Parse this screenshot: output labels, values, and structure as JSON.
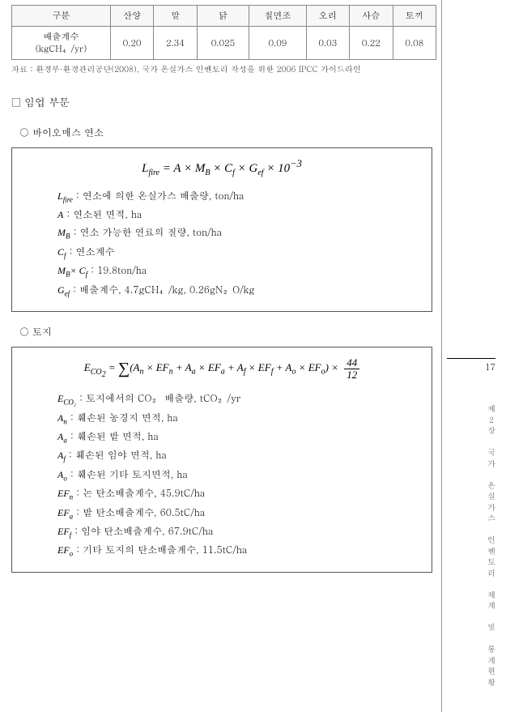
{
  "table": {
    "columns": [
      "구분",
      "산양",
      "말",
      "닭",
      "칠면조",
      "오리",
      "사슴",
      "토끼"
    ],
    "rowLabel": "배출계수\n(kgCH₄/yr)",
    "values": [
      "0.20",
      "2.34",
      "0.025",
      "0.09",
      "0.03",
      "0.22",
      "0.08"
    ]
  },
  "source": "자료 : 환경부·환경관리공단(2008), 국가 온실가스 인벤토리 작성을 위한 2006 IPCC 가이드라인",
  "section1": "□ 임업 부문",
  "sub1": "○ 바이오매스 연소",
  "eq1": "L<sub>fire</sub> = A × M<sub>B</sub> × C<sub>f</sub> × G<sub>ef</sub> × 10<sup>−3</sup>",
  "defs1": [
    {
      "sym": "L",
      "sub": "fire",
      "txt": " : 연소에 의한 온실가스 배출량, ton/ha"
    },
    {
      "sym": "A",
      "sub": "",
      "txt": " : 연소된 면적, ha"
    },
    {
      "sym": "M",
      "sub": "B",
      "txt": " : 연소 가능한 연료의 질량, ton/ha"
    },
    {
      "sym": "C",
      "sub": "f",
      "txt": " : 연소계수"
    },
    {
      "sym": "M<sub class='sub2'>B</sub>× C",
      "sub": "f",
      "txt": " : 19.8ton/ha"
    },
    {
      "sym": "G",
      "sub": "ef",
      "txt": " : 배출계수, 4.7gCH₄/kg, 0.26gN₂O/kg"
    }
  ],
  "sub2": "○ 토지",
  "eq2": "E<sub>CO<sub>2</sub></sub> = <span class='sum'>∑</span>(A<sub>n</sub> × EF<sub>n</sub> + A<sub>a</sub> × EF<sub>a</sub> + A<sub>f</sub> × EF<sub>f</sub> + A<sub>o</sub> × EF<sub>o</sub>) × <span class='frac'><span class='n'>44</span><span class='d'>12</span></span>",
  "defs2": [
    {
      "sym": "E",
      "sub": "CO₂",
      "txt": " : 토지에서의 CO₂ 배출량, tCO₂/yr"
    },
    {
      "sym": "A",
      "sub": "n",
      "txt": " : 훼손된 농경지 면적, ha"
    },
    {
      "sym": "A",
      "sub": "a",
      "txt": " : 훼손된 밭 면적, ha"
    },
    {
      "sym": "A",
      "sub": "f",
      "txt": " : 훼손된 임야 면적, ha"
    },
    {
      "sym": "A",
      "sub": "o",
      "txt": " : 훼손된 기타 토지면적, ha"
    },
    {
      "sym": "EF",
      "sub": "n",
      "txt": " : 논 탄소배출계수, 45.9tC/ha"
    },
    {
      "sym": "EF",
      "sub": "a",
      "txt": " : 밭 탄소배출계수, 60.5tC/ha"
    },
    {
      "sym": "EF",
      "sub": "f",
      "txt": " : 임야 탄소배출계수, 67.9tC/ha"
    },
    {
      "sym": "EF",
      "sub": "o",
      "txt": " : 기타 토지의 탄소배출계수, 11.5tC/ha"
    }
  ],
  "pageNum": "17",
  "chapter": "제２장　국가　온실가스　인벤토리　체계　및　통계현황"
}
